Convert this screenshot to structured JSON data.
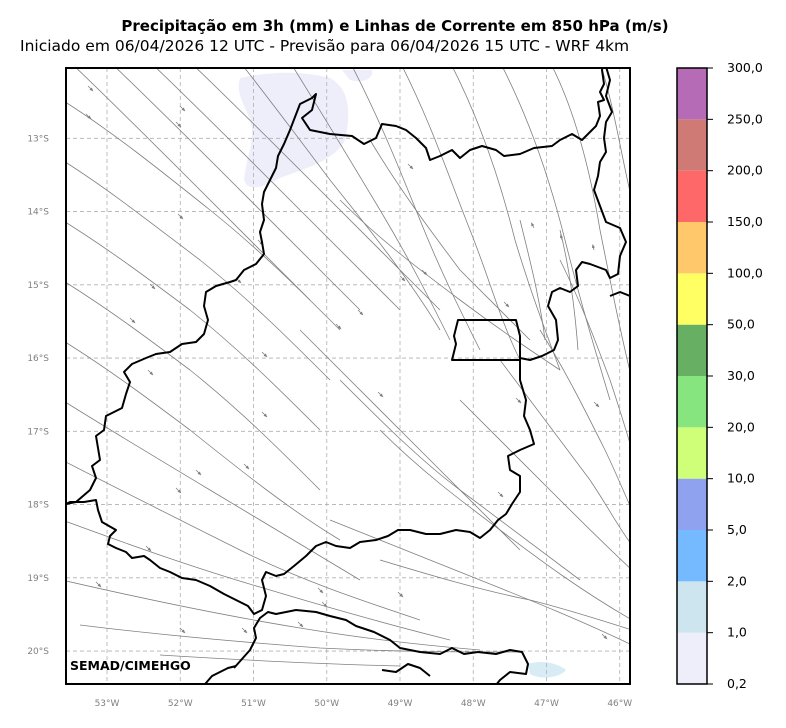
{
  "title": "Precipitação em 3h (mm) e Linhas de Corrente em 850 hPa (m/s)",
  "subtitle": "Iniciado em 06/04/2026 12 UTC - Previsão para 06/04/2026 15 UTC - WRF 4km",
  "credit": "SEMAD/CIMEHGO",
  "map": {
    "lon_range": [
      -53.56,
      -45.86
    ],
    "lat_range": [
      -20.45,
      -12.04
    ],
    "lon_ticks": [
      -53,
      -52,
      -51,
      -50,
      -49,
      -48,
      -47,
      -46
    ],
    "lon_labels": [
      "53°W",
      "52°W",
      "51°W",
      "50°W",
      "49°W",
      "48°W",
      "47°W",
      "46°W"
    ],
    "lat_ticks": [
      -13,
      -14,
      -15,
      -16,
      -17,
      -18,
      -19,
      -20
    ],
    "lat_labels": [
      "13°S",
      "14°S",
      "15°S",
      "16°S",
      "17°S",
      "18°S",
      "19°S",
      "20°S"
    ],
    "streamline_color": "#808080",
    "precip_color": "#eeeefb",
    "border_color": "#000000",
    "grid_color": "#b0b0b0"
  },
  "colorbar": {
    "labels": [
      "0,2",
      "1,0",
      "2,0",
      "5,0",
      "10,0",
      "20,0",
      "30,0",
      "50,0",
      "100,0",
      "150,0",
      "200,0",
      "250,0",
      "300,0"
    ],
    "colors": [
      "#eeeefb",
      "#cce5ef",
      "#75b9ff",
      "#8ea2ef",
      "#cfff78",
      "#86e57f",
      "#66af63",
      "#ffff63",
      "#ffc86a",
      "#ff6868",
      "#cf7a75",
      "#b56bb6"
    ]
  }
}
